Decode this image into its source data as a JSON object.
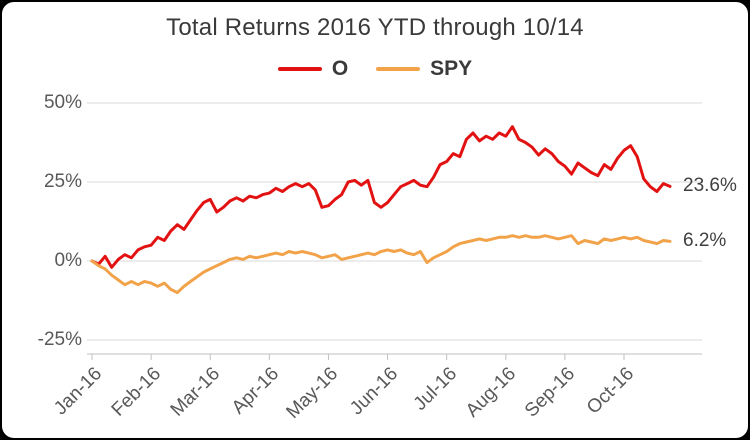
{
  "chart_data": {
    "type": "line",
    "title": "Total Returns 2016 YTD through 10/14",
    "xlabel": "",
    "ylabel": "",
    "ylim": [
      -25,
      50
    ],
    "grid": "horizontal",
    "legend_position": "top",
    "x_count": 89,
    "yticks": [
      {
        "label": "50%",
        "value": 50
      },
      {
        "label": "25%",
        "value": 25
      },
      {
        "label": "0%",
        "value": 0
      },
      {
        "label": "-25%",
        "value": -25
      }
    ],
    "xticks": [
      {
        "label": "Jan-16",
        "index": 0
      },
      {
        "label": "Feb-16",
        "index": 9
      },
      {
        "label": "Mar-16",
        "index": 18
      },
      {
        "label": "Apr-16",
        "index": 27
      },
      {
        "label": "May-16",
        "index": 36
      },
      {
        "label": "Jun-16",
        "index": 45
      },
      {
        "label": "Jul-16",
        "index": 54
      },
      {
        "label": "Aug-16",
        "index": 63
      },
      {
        "label": "Sep-16",
        "index": 72
      },
      {
        "label": "Oct-16",
        "index": 81
      }
    ],
    "series": [
      {
        "name": "O",
        "color": "#e31212",
        "end_label": "23.6%",
        "values": [
          0,
          -1,
          1.5,
          -2,
          0.5,
          2,
          1,
          3.5,
          4.5,
          5,
          7.5,
          6.5,
          9.5,
          11.5,
          10,
          13,
          16,
          18.5,
          19.5,
          15.5,
          17,
          19,
          20,
          19,
          20.5,
          20,
          21,
          21.5,
          23,
          22,
          23.5,
          24.5,
          23.5,
          24.5,
          22.5,
          17,
          17.5,
          19.5,
          21,
          25,
          25.5,
          24,
          25.5,
          18.5,
          17,
          18.5,
          21,
          23.5,
          24.5,
          25.5,
          24,
          23.5,
          26.5,
          30.5,
          31.5,
          34,
          33,
          38.5,
          40.5,
          38,
          39.5,
          38.5,
          40.5,
          39.5,
          42.5,
          38.5,
          37.5,
          36,
          33.5,
          35.5,
          34,
          31.5,
          30,
          27.5,
          31,
          29.5,
          28,
          27,
          30.5,
          29,
          32.5,
          35,
          36.5,
          33,
          26,
          23.5,
          22,
          24.5,
          23.6
        ]
      },
      {
        "name": "SPY",
        "color": "#f2a34a",
        "end_label": "6.2%",
        "values": [
          0,
          -1.5,
          -2.5,
          -4.5,
          -6,
          -7.5,
          -6.5,
          -7.5,
          -6.5,
          -7,
          -8,
          -7,
          -9,
          -10,
          -8,
          -6.5,
          -5,
          -3.5,
          -2.5,
          -1.5,
          -0.5,
          0.5,
          1,
          0.5,
          1.5,
          1,
          1.5,
          2,
          2.5,
          2,
          3,
          2.5,
          3,
          2.5,
          2,
          1,
          1.5,
          2,
          0.5,
          1,
          1.5,
          2,
          2.5,
          2,
          3,
          3.5,
          3,
          3.5,
          2.5,
          2,
          3,
          -0.5,
          1,
          2,
          3,
          4.5,
          5.5,
          6,
          6.5,
          7,
          6.5,
          7,
          7.5,
          7.5,
          8,
          7.5,
          8,
          7.5,
          7.5,
          8,
          7.5,
          7,
          7.5,
          8,
          5.5,
          6.5,
          6,
          5.5,
          7,
          6.5,
          7,
          7.5,
          7,
          7.5,
          6.5,
          6,
          5.5,
          6.5,
          6.2
        ]
      }
    ]
  },
  "frame": {
    "background": "#ffffff",
    "border": "#000000",
    "gridline_color": "#d9d9d9",
    "axis_color": "#bfbfbf"
  }
}
